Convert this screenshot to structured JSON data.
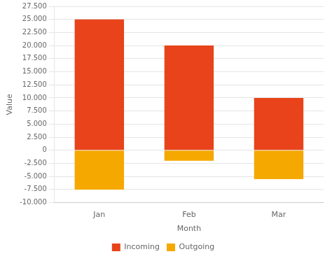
{
  "chart_data": {
    "type": "bar",
    "categories": [
      "Jan",
      "Feb",
      "Mar"
    ],
    "series": [
      {
        "name": "Incoming",
        "color": "#E8431A",
        "values": [
          25000,
          20000,
          10000
        ]
      },
      {
        "name": "Outgoing",
        "color": "#F5A800",
        "values": [
          -7500,
          -2000,
          -5500
        ]
      }
    ],
    "xlabel": "Month",
    "ylabel": "Value",
    "ylim": [
      -10000,
      27500
    ],
    "yticks": [
      {
        "value": -10000,
        "label": "-10.000"
      },
      {
        "value": -7500,
        "label": "-7.500"
      },
      {
        "value": -5000,
        "label": "-5.000"
      },
      {
        "value": -2500,
        "label": "-2.500"
      },
      0,
      {
        "value": 2500,
        "label": "2.500"
      },
      {
        "value": 5000,
        "label": "5.000"
      },
      {
        "value": 7500,
        "label": "7.500"
      },
      {
        "value": 10000,
        "label": "10.000"
      },
      {
        "value": 12500,
        "label": "12.500"
      },
      {
        "value": 15000,
        "label": "15.000"
      },
      {
        "value": 17500,
        "label": "17.500"
      },
      {
        "value": 20000,
        "label": "20.000"
      },
      {
        "value": 22500,
        "label": "22.500"
      },
      {
        "value": 25000,
        "label": "25.000"
      },
      {
        "value": 27500,
        "label": "27.500"
      }
    ],
    "grid": true,
    "legend": "bottom"
  }
}
